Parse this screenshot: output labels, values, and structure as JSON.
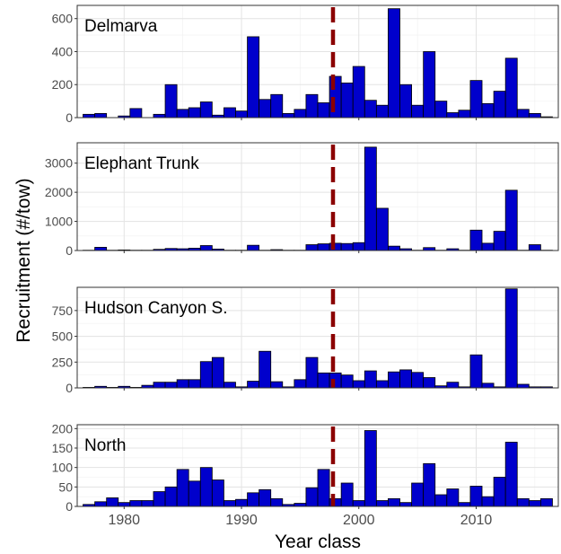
{
  "chart_data": {
    "type": "bar",
    "xlabel": "Year class",
    "ylabel": "Recruitment (#/tow)",
    "x_ticks": [
      1980,
      1990,
      2000,
      2010
    ],
    "xlim": [
      1976,
      2017
    ],
    "reference_line": {
      "x": 1997.8,
      "style": "dashed",
      "color": "#8b0000"
    },
    "grid": true,
    "colors": {
      "bar_fill": "#0000cc",
      "bar_stroke": "#000000"
    },
    "panels": [
      {
        "name": "Delmarva",
        "ylim": [
          0,
          680
        ],
        "y_ticks": [
          0,
          200,
          400,
          600
        ],
        "years": [
          1977,
          1978,
          1979,
          1980,
          1981,
          1982,
          1983,
          1984,
          1985,
          1986,
          1987,
          1988,
          1989,
          1990,
          1991,
          1992,
          1993,
          1994,
          1995,
          1996,
          1997,
          1998,
          1999,
          2000,
          2001,
          2002,
          2003,
          2004,
          2005,
          2006,
          2007,
          2008,
          2009,
          2010,
          2011,
          2012,
          2013,
          2014,
          2015,
          2016
        ],
        "values": [
          20,
          25,
          0,
          10,
          55,
          0,
          20,
          200,
          50,
          60,
          95,
          15,
          60,
          40,
          490,
          110,
          140,
          25,
          50,
          140,
          90,
          250,
          210,
          310,
          105,
          75,
          660,
          200,
          75,
          400,
          100,
          30,
          45,
          225,
          85,
          160,
          360,
          50,
          25,
          5
        ]
      },
      {
        "name": "Elephant Trunk",
        "ylim": [
          0,
          3700
        ],
        "y_ticks": [
          0,
          1000,
          2000,
          3000
        ],
        "years": [
          1977,
          1978,
          1979,
          1980,
          1981,
          1982,
          1983,
          1984,
          1985,
          1986,
          1987,
          1988,
          1989,
          1990,
          1991,
          1992,
          1993,
          1994,
          1995,
          1996,
          1997,
          1998,
          1999,
          2000,
          2001,
          2002,
          2003,
          2004,
          2005,
          2006,
          2007,
          2008,
          2009,
          2010,
          2011,
          2012,
          2013,
          2014,
          2015,
          2016
        ],
        "values": [
          10,
          110,
          10,
          20,
          10,
          10,
          40,
          70,
          60,
          80,
          170,
          50,
          10,
          10,
          180,
          10,
          30,
          10,
          10,
          200,
          230,
          250,
          240,
          270,
          3550,
          1450,
          150,
          60,
          10,
          100,
          10,
          60,
          10,
          700,
          250,
          660,
          2070,
          10,
          200,
          10
        ]
      },
      {
        "name": "Hudson Canyon S.",
        "ylim": [
          0,
          975
        ],
        "y_ticks": [
          0,
          250,
          500,
          750
        ],
        "years": [
          1977,
          1978,
          1979,
          1980,
          1981,
          1982,
          1983,
          1984,
          1985,
          1986,
          1987,
          1988,
          1989,
          1990,
          1991,
          1992,
          1993,
          1994,
          1995,
          1996,
          1997,
          1998,
          1999,
          2000,
          2001,
          2002,
          2003,
          2004,
          2005,
          2006,
          2007,
          2008,
          2009,
          2010,
          2011,
          2012,
          2013,
          2014,
          2015,
          2016
        ],
        "values": [
          5,
          15,
          5,
          15,
          5,
          25,
          55,
          55,
          80,
          80,
          255,
          295,
          55,
          10,
          65,
          355,
          60,
          10,
          80,
          295,
          145,
          145,
          125,
          70,
          165,
          70,
          155,
          175,
          150,
          100,
          20,
          55,
          10,
          320,
          45,
          10,
          960,
          35,
          10,
          10
        ]
      },
      {
        "name": "North",
        "ylim": [
          0,
          210
        ],
        "y_ticks": [
          0,
          50,
          100,
          150,
          200
        ],
        "years": [
          1977,
          1978,
          1979,
          1980,
          1981,
          1982,
          1983,
          1984,
          1985,
          1986,
          1987,
          1988,
          1989,
          1990,
          1991,
          1992,
          1993,
          1994,
          1995,
          1996,
          1997,
          1998,
          1999,
          2000,
          2001,
          2002,
          2003,
          2004,
          2005,
          2006,
          2007,
          2008,
          2009,
          2010,
          2011,
          2012,
          2013,
          2014,
          2015,
          2016
        ],
        "values": [
          5,
          12,
          22,
          10,
          15,
          15,
          38,
          50,
          95,
          65,
          100,
          68,
          15,
          18,
          35,
          43,
          20,
          5,
          8,
          48,
          95,
          20,
          60,
          15,
          195,
          15,
          20,
          10,
          60,
          110,
          30,
          45,
          10,
          52,
          25,
          75,
          165,
          20,
          15,
          20
        ]
      }
    ]
  }
}
